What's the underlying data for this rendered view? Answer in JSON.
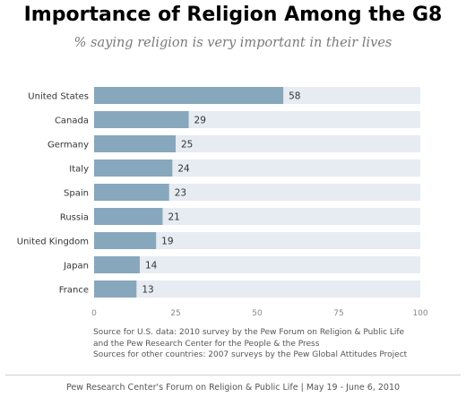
{
  "header": {
    "title": "Importance of Religion Among the G8",
    "subtitle": "% saying religion is very important in their lives"
  },
  "chart_data": {
    "type": "bar",
    "orientation": "horizontal",
    "categories": [
      "United States",
      "Canada",
      "Germany",
      "Italy",
      "Spain",
      "Russia",
      "United Kingdom",
      "Japan",
      "France"
    ],
    "values": [
      58,
      29,
      25,
      24,
      23,
      21,
      19,
      14,
      13
    ],
    "xlim": [
      0,
      100
    ],
    "xticks": [
      0,
      25,
      50,
      75,
      100
    ],
    "grid": false,
    "legend": "none",
    "colors": {
      "bar": "#87a7bd",
      "track": "#e6ecf2",
      "label": "#333333",
      "tick": "#888888"
    }
  },
  "notes": {
    "source_line1": "Source for U.S. data: 2010 survey by the Pew Forum on Religion & Public Life",
    "source_line2": "and the Pew Research Center for the People & the Press",
    "source_line3": "Sources for other countries: 2007 surveys by the Pew Global Attitudes Project"
  },
  "footer": {
    "text": "Pew Research Center's Forum on Religion & Public Life  |  May 19 - June 6, 2010"
  }
}
